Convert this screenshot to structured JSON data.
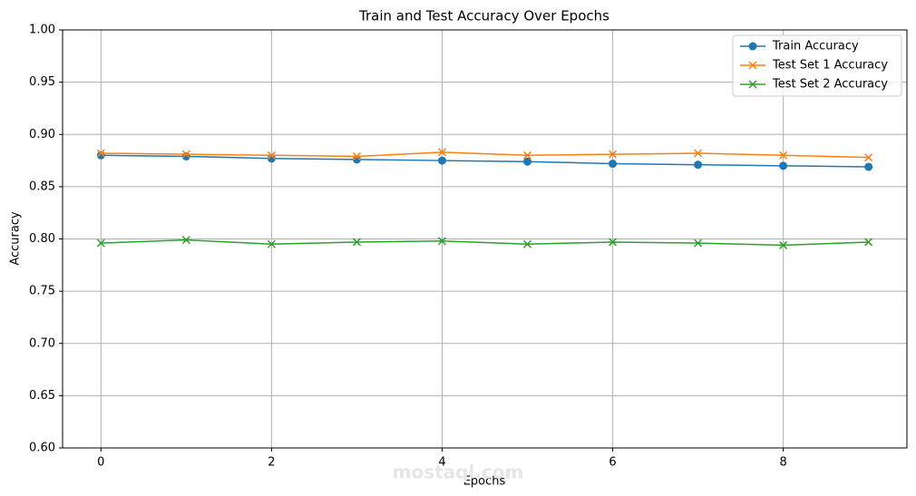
{
  "chart_data": {
    "type": "line",
    "title": "Train and Test Accuracy Over Epochs",
    "x_label": "Epochs",
    "y_label": "Accuracy",
    "x": [
      0,
      1,
      2,
      3,
      4,
      5,
      6,
      7,
      8,
      9
    ],
    "series": [
      {
        "name": "Train Accuracy",
        "color": "#1f77b4",
        "marker": "o",
        "values": [
          0.88,
          0.879,
          0.877,
          0.876,
          0.875,
          0.874,
          0.872,
          0.871,
          0.87,
          0.869
        ]
      },
      {
        "name": "Test Set 1 Accuracy",
        "color": "#ff7f0e",
        "marker": "x",
        "values": [
          0.882,
          0.881,
          0.88,
          0.879,
          0.883,
          0.88,
          0.881,
          0.882,
          0.88,
          0.878
        ]
      },
      {
        "name": "Test Set 2 Accuracy",
        "color": "#2ca02c",
        "marker": "x",
        "values": [
          0.796,
          0.799,
          0.795,
          0.797,
          0.798,
          0.795,
          0.797,
          0.796,
          0.794,
          0.797
        ]
      }
    ],
    "xlim": [
      -0.45,
      9.45
    ],
    "xticks": [
      0,
      2,
      4,
      6,
      8
    ],
    "ylim": [
      0.6,
      1.0
    ],
    "yticks": [
      {
        "value": 0.6,
        "label": "0.60"
      },
      0.65,
      {
        "value": 0.7,
        "label": "0.70"
      },
      0.75,
      {
        "value": 0.8,
        "label": "0.80"
      },
      0.85,
      {
        "value": 0.9,
        "label": "0.90"
      },
      0.95,
      {
        "value": 1.0,
        "label": "1.00"
      }
    ],
    "grid": true,
    "legend": "upper right",
    "watermark": "mostaql.com"
  }
}
